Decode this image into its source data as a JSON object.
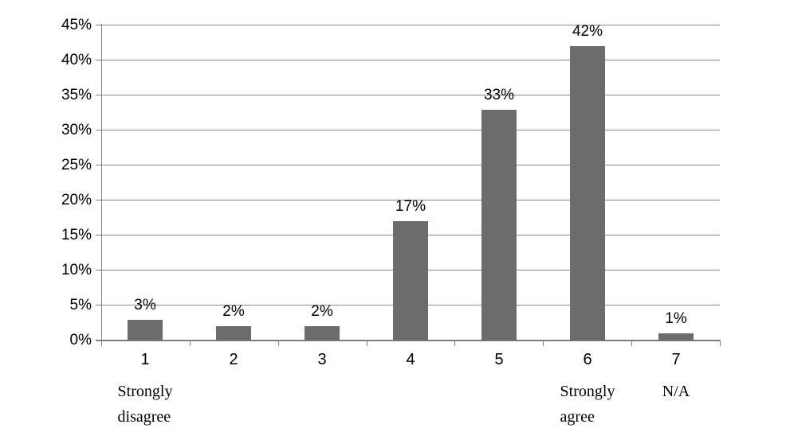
{
  "chart_data": {
    "type": "bar",
    "title": "",
    "xlabel": "",
    "ylabel": "",
    "categories": [
      "1",
      "2",
      "3",
      "4",
      "5",
      "6",
      "7"
    ],
    "values": [
      3,
      2,
      2,
      17,
      33,
      42,
      1
    ],
    "value_labels": [
      "3%",
      "2%",
      "2%",
      "17%",
      "33%",
      "42%",
      "1%"
    ],
    "ylim": [
      0,
      45
    ],
    "y_tick_step": 5,
    "y_tick_labels": [
      "0%",
      "5%",
      "10%",
      "15%",
      "20%",
      "25%",
      "30%",
      "35%",
      "40%",
      "45%"
    ],
    "grid": "horizontal",
    "legend": "none",
    "category_annotations": [
      {
        "category": "1",
        "text": "Strongly\ndisagree"
      },
      {
        "category": "6",
        "text": "Strongly\nagree"
      },
      {
        "category": "7",
        "text": "N/A"
      }
    ],
    "colors": {
      "bar_fill": "#6c6c6c",
      "gridline": "#8a8a8a",
      "axis_line": "#7f7f7f",
      "text": "#000000",
      "background": "#ffffff"
    }
  }
}
